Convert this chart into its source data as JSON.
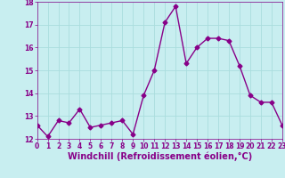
{
  "x": [
    0,
    1,
    2,
    3,
    4,
    5,
    6,
    7,
    8,
    9,
    10,
    11,
    12,
    13,
    14,
    15,
    16,
    17,
    18,
    19,
    20,
    21,
    22,
    23
  ],
  "y": [
    12.6,
    12.1,
    12.8,
    12.7,
    13.3,
    12.5,
    12.6,
    12.7,
    12.8,
    12.2,
    13.9,
    15.0,
    17.1,
    17.8,
    15.3,
    16.0,
    16.4,
    16.4,
    16.3,
    15.2,
    13.9,
    13.6,
    13.6,
    12.6
  ],
  "line_color": "#880088",
  "marker": "D",
  "marker_size": 2.5,
  "linewidth": 1.0,
  "xlabel": "Windchill (Refroidissement éolien,°C)",
  "xlim": [
    0,
    23
  ],
  "ylim": [
    12.0,
    18.0
  ],
  "yticks": [
    12,
    13,
    14,
    15,
    16,
    17,
    18
  ],
  "xticks": [
    0,
    1,
    2,
    3,
    4,
    5,
    6,
    7,
    8,
    9,
    10,
    11,
    12,
    13,
    14,
    15,
    16,
    17,
    18,
    19,
    20,
    21,
    22,
    23
  ],
  "bg_color": "#c8eef0",
  "grid_color": "#aadddd",
  "tick_label_color": "#880088",
  "xlabel_color": "#880088",
  "tick_label_fontsize": 5.5,
  "xlabel_fontsize": 7.0
}
